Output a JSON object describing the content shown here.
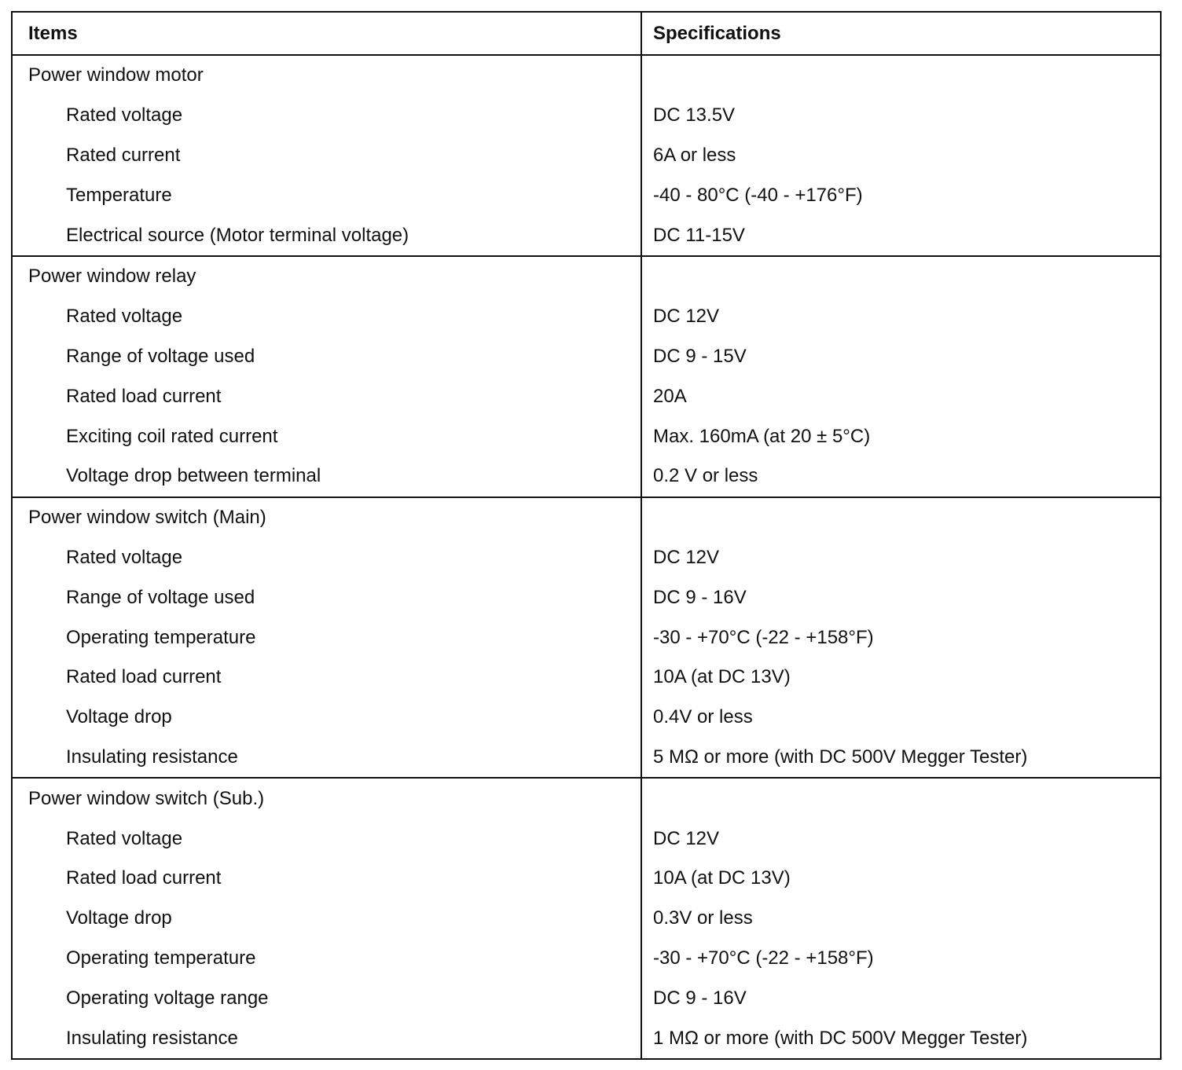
{
  "table": {
    "headers": [
      "Items",
      "Specifications"
    ],
    "sections": [
      {
        "title": "Power window motor",
        "rows": [
          [
            "Rated voltage",
            "DC 13.5V"
          ],
          [
            "Rated current",
            "6A or less"
          ],
          [
            "Temperature",
            "-40 - 80°C (-40 - +176°F)"
          ],
          [
            "Electrical source (Motor terminal voltage)",
            "DC 11-15V"
          ]
        ]
      },
      {
        "title": "Power window relay",
        "rows": [
          [
            "Rated voltage",
            "DC 12V"
          ],
          [
            "Range of voltage used",
            "DC 9 - 15V"
          ],
          [
            "Rated load current",
            "20A"
          ],
          [
            "Exciting coil rated current",
            "Max. 160mA (at 20 ± 5°C)"
          ],
          [
            "Voltage drop between terminal",
            "0.2 V or less"
          ]
        ]
      },
      {
        "title": "Power window switch (Main)",
        "rows": [
          [
            "Rated voltage",
            "DC 12V"
          ],
          [
            "Range of voltage used",
            "DC 9 - 16V"
          ],
          [
            "Operating temperature",
            "-30 - +70°C (-22 - +158°F)"
          ],
          [
            "Rated load current",
            "10A (at DC 13V)"
          ],
          [
            "Voltage drop",
            "0.4V or less"
          ],
          [
            "Insulating resistance",
            "5 MΩ or more (with DC 500V Megger Tester)"
          ]
        ]
      },
      {
        "title": "Power window switch (Sub.)",
        "rows": [
          [
            "Rated voltage",
            "DC 12V"
          ],
          [
            "Rated load current",
            "10A (at DC 13V)"
          ],
          [
            "Voltage drop",
            "0.3V or less"
          ],
          [
            "Operating temperature",
            "-30 - +70°C (-22 - +158°F)"
          ],
          [
            "Operating voltage range",
            "DC 9 - 16V"
          ],
          [
            "Insulating resistance",
            "1 MΩ or more (with DC 500V Megger Tester)"
          ]
        ]
      }
    ]
  }
}
